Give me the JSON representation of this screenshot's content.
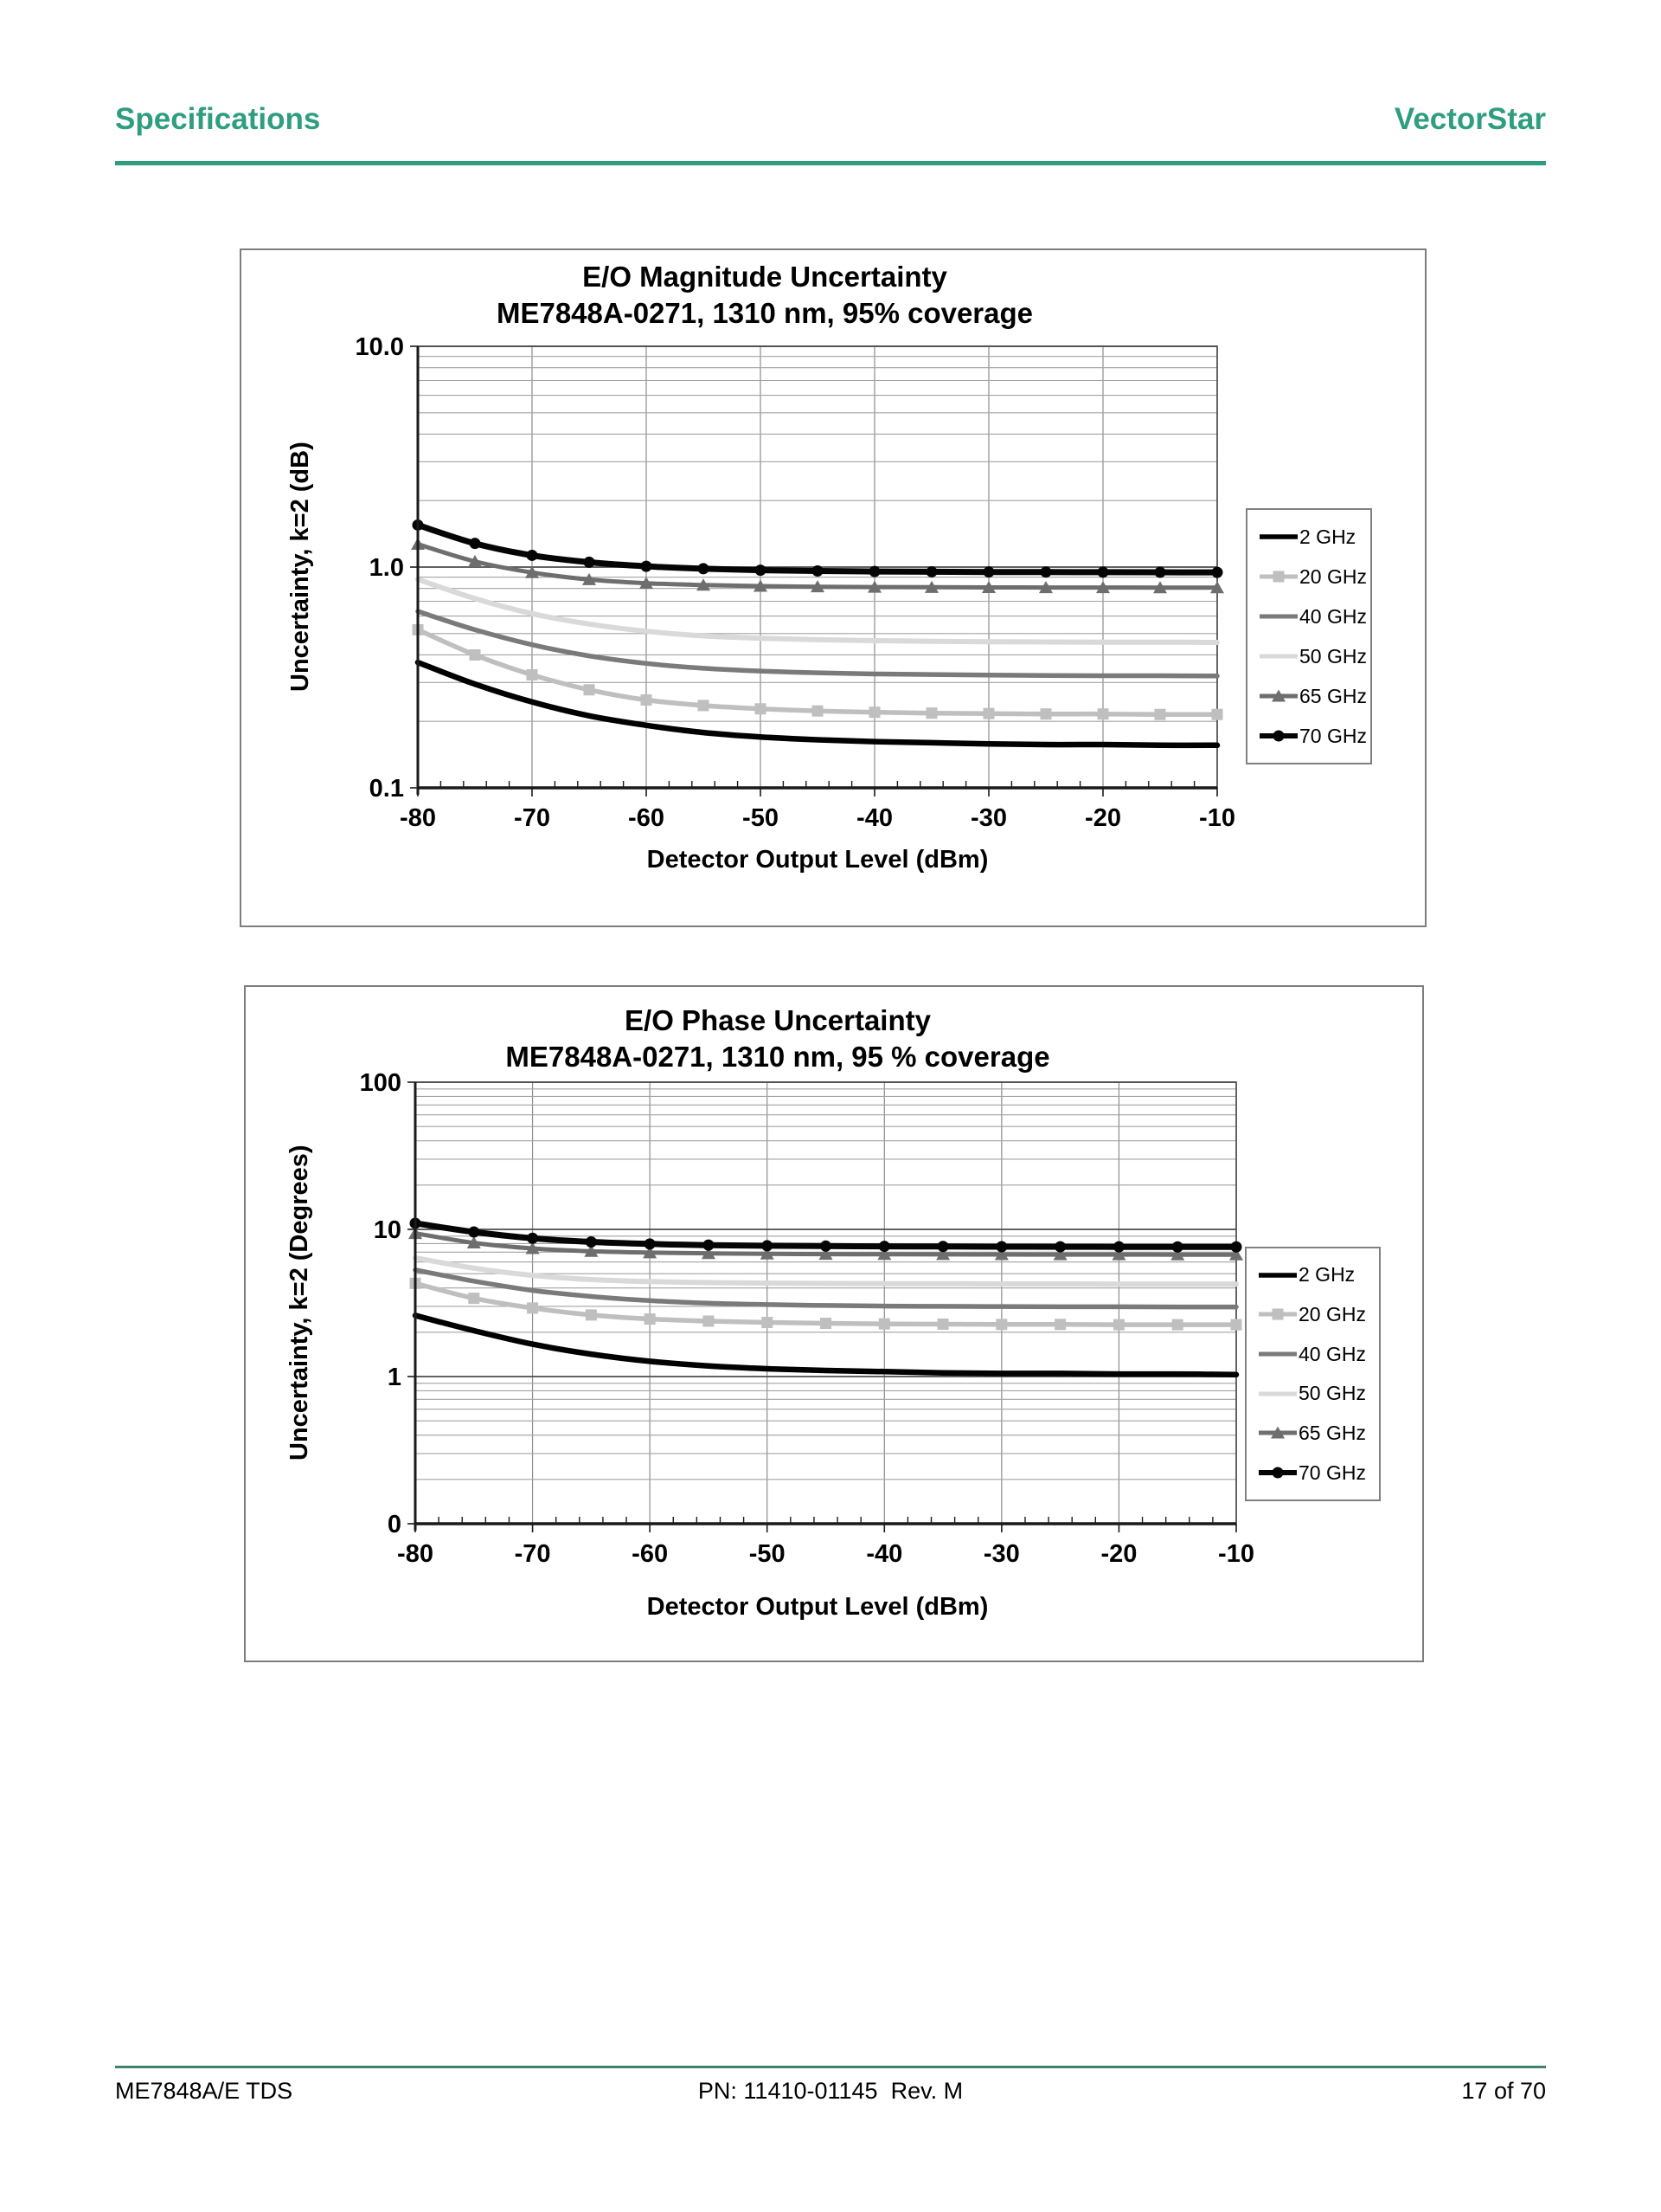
{
  "page": {
    "header": {
      "left": "Specifications",
      "right": "VectorStar",
      "accent_color": "#2e9d80"
    },
    "footer": {
      "left": "ME7848A/E TDS",
      "center": "PN: 11410-01145  Rev. M",
      "right": "17 of 70"
    }
  },
  "chart_data": [
    {
      "type": "line",
      "title_line1": "E/O Magnitude Uncertainty",
      "title_line2": "ME7848A-0271, 1310 nm, 95% coverage",
      "xlabel": "Detector Output Level (dBm)",
      "ylabel": "Uncertainty, k=2 (dB)",
      "xlim": [
        -80,
        -10
      ],
      "x_major_step": 10,
      "x_minor_step": 2,
      "yscale": "log",
      "ylim": [
        0.1,
        10
      ],
      "y_tick_labels": [
        {
          "value": 10,
          "label": "10.0"
        },
        {
          "value": 1,
          "label": "1.0"
        },
        {
          "value": 0.1,
          "label": "0.1"
        }
      ],
      "grid": true,
      "legend_position": "right",
      "x": [
        -80,
        -75,
        -70,
        -65,
        -60,
        -55,
        -50,
        -45,
        -40,
        -35,
        -30,
        -25,
        -20,
        -15,
        -10
      ],
      "series": [
        {
          "name": "2 GHz",
          "color": "#000000",
          "width": 6.5,
          "marker": "none",
          "values": [
            0.37,
            0.295,
            0.245,
            0.212,
            0.192,
            0.178,
            0.17,
            0.165,
            0.162,
            0.16,
            0.158,
            0.157,
            0.157,
            0.156,
            0.156
          ]
        },
        {
          "name": "20 GHz",
          "color": "#bfbfbf",
          "width": 5.5,
          "marker": "square",
          "values": [
            0.52,
            0.4,
            0.325,
            0.278,
            0.25,
            0.236,
            0.228,
            0.223,
            0.22,
            0.218,
            0.217,
            0.216,
            0.216,
            0.215,
            0.215
          ]
        },
        {
          "name": "40 GHz",
          "color": "#7a7a7a",
          "width": 5.5,
          "marker": "none",
          "values": [
            0.63,
            0.52,
            0.445,
            0.396,
            0.366,
            0.348,
            0.338,
            0.332,
            0.328,
            0.326,
            0.324,
            0.323,
            0.322,
            0.322,
            0.321
          ]
        },
        {
          "name": "50 GHz",
          "color": "#d9d9d9",
          "width": 6,
          "marker": "none",
          "values": [
            0.88,
            0.72,
            0.615,
            0.552,
            0.512,
            0.488,
            0.476,
            0.469,
            0.464,
            0.461,
            0.459,
            0.458,
            0.457,
            0.457,
            0.456
          ]
        },
        {
          "name": "65 GHz",
          "color": "#6e6e6e",
          "width": 5,
          "marker": "triangle",
          "values": [
            1.27,
            1.06,
            0.945,
            0.878,
            0.845,
            0.829,
            0.82,
            0.815,
            0.812,
            0.81,
            0.809,
            0.808,
            0.808,
            0.807,
            0.807
          ]
        },
        {
          "name": "70 GHz",
          "color": "#050505",
          "width": 7,
          "marker": "circle",
          "values": [
            1.55,
            1.28,
            1.13,
            1.052,
            1.008,
            0.983,
            0.968,
            0.96,
            0.955,
            0.952,
            0.95,
            0.949,
            0.948,
            0.947,
            0.946
          ]
        }
      ]
    },
    {
      "type": "line",
      "title_line1": "E/O Phase Uncertainty",
      "title_line2": "ME7848A-0271, 1310 nm, 95 % coverage",
      "xlabel": "Detector Output Level (dBm)",
      "ylabel": "Uncertainty, k=2 (Degrees)",
      "xlim": [
        -80,
        -10
      ],
      "x_major_step": 10,
      "x_minor_step": 2,
      "yscale": "log",
      "ylim": [
        0.1,
        100
      ],
      "y_tick_labels": [
        {
          "value": 100,
          "label": "100"
        },
        {
          "value": 10,
          "label": "10"
        },
        {
          "value": 1,
          "label": "1"
        },
        {
          "value": 0.1,
          "label": "0"
        }
      ],
      "grid": true,
      "legend_position": "right",
      "x": [
        -80,
        -75,
        -70,
        -65,
        -60,
        -55,
        -50,
        -45,
        -40,
        -35,
        -30,
        -25,
        -20,
        -15,
        -10
      ],
      "series": [
        {
          "name": "2 GHz",
          "color": "#000000",
          "width": 6.5,
          "marker": "none",
          "values": [
            2.6,
            2.05,
            1.66,
            1.42,
            1.27,
            1.18,
            1.13,
            1.1,
            1.08,
            1.06,
            1.05,
            1.05,
            1.04,
            1.04,
            1.03
          ]
        },
        {
          "name": "20 GHz",
          "color": "#bfbfbf",
          "width": 5.5,
          "marker": "square",
          "values": [
            4.3,
            3.4,
            2.92,
            2.62,
            2.46,
            2.38,
            2.33,
            2.3,
            2.28,
            2.27,
            2.26,
            2.26,
            2.25,
            2.25,
            2.25
          ]
        },
        {
          "name": "40 GHz",
          "color": "#7a7a7a",
          "width": 5.5,
          "marker": "none",
          "values": [
            5.3,
            4.45,
            3.85,
            3.5,
            3.28,
            3.15,
            3.08,
            3.04,
            3.01,
            3.0,
            2.99,
            2.98,
            2.98,
            2.97,
            2.97
          ]
        },
        {
          "name": "50 GHz",
          "color": "#d9d9d9",
          "width": 6,
          "marker": "none",
          "values": [
            6.4,
            5.45,
            4.87,
            4.56,
            4.42,
            4.35,
            4.31,
            4.29,
            4.28,
            4.27,
            4.26,
            4.26,
            4.25,
            4.25,
            4.25
          ]
        },
        {
          "name": "65 GHz",
          "color": "#6e6e6e",
          "width": 5,
          "marker": "triangle",
          "values": [
            9.4,
            8.1,
            7.42,
            7.1,
            6.95,
            6.87,
            6.82,
            6.79,
            6.77,
            6.76,
            6.75,
            6.74,
            6.74,
            6.73,
            6.73
          ]
        },
        {
          "name": "70 GHz",
          "color": "#050505",
          "width": 7,
          "marker": "circle",
          "values": [
            11.0,
            9.6,
            8.7,
            8.22,
            7.96,
            7.82,
            7.74,
            7.7,
            7.67,
            7.65,
            7.63,
            7.62,
            7.61,
            7.6,
            7.6
          ]
        }
      ]
    }
  ]
}
